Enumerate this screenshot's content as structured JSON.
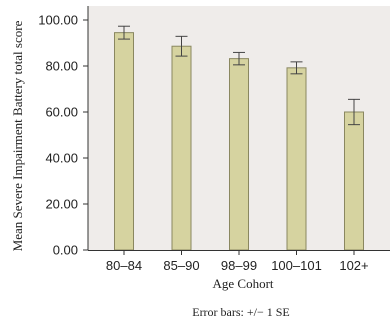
{
  "chart_data": {
    "type": "bar",
    "categories": [
      "80–84",
      "85–90",
      "98–99",
      "100–101",
      "102+"
    ],
    "values": [
      94.5,
      88.6,
      83.2,
      79.2,
      60.0
    ],
    "error_bars": {
      "label": "Error bars: +/− 1 SE",
      "se": [
        2.8,
        4.3,
        2.7,
        2.6,
        5.5
      ]
    },
    "xlabel": "Age Cohort",
    "ylabel": "Mean Severe Impairment Battery total score",
    "ylim": [
      0,
      100
    ],
    "yticks": [
      "0.00",
      "20.00",
      "40.00",
      "60.00",
      "80.00",
      "100.00"
    ],
    "grid": false,
    "colors": {
      "bar_fill": "#d6d3a0",
      "bar_stroke": "#8a8760",
      "plot_background": "#efecea",
      "error_bar": "#444444"
    }
  }
}
